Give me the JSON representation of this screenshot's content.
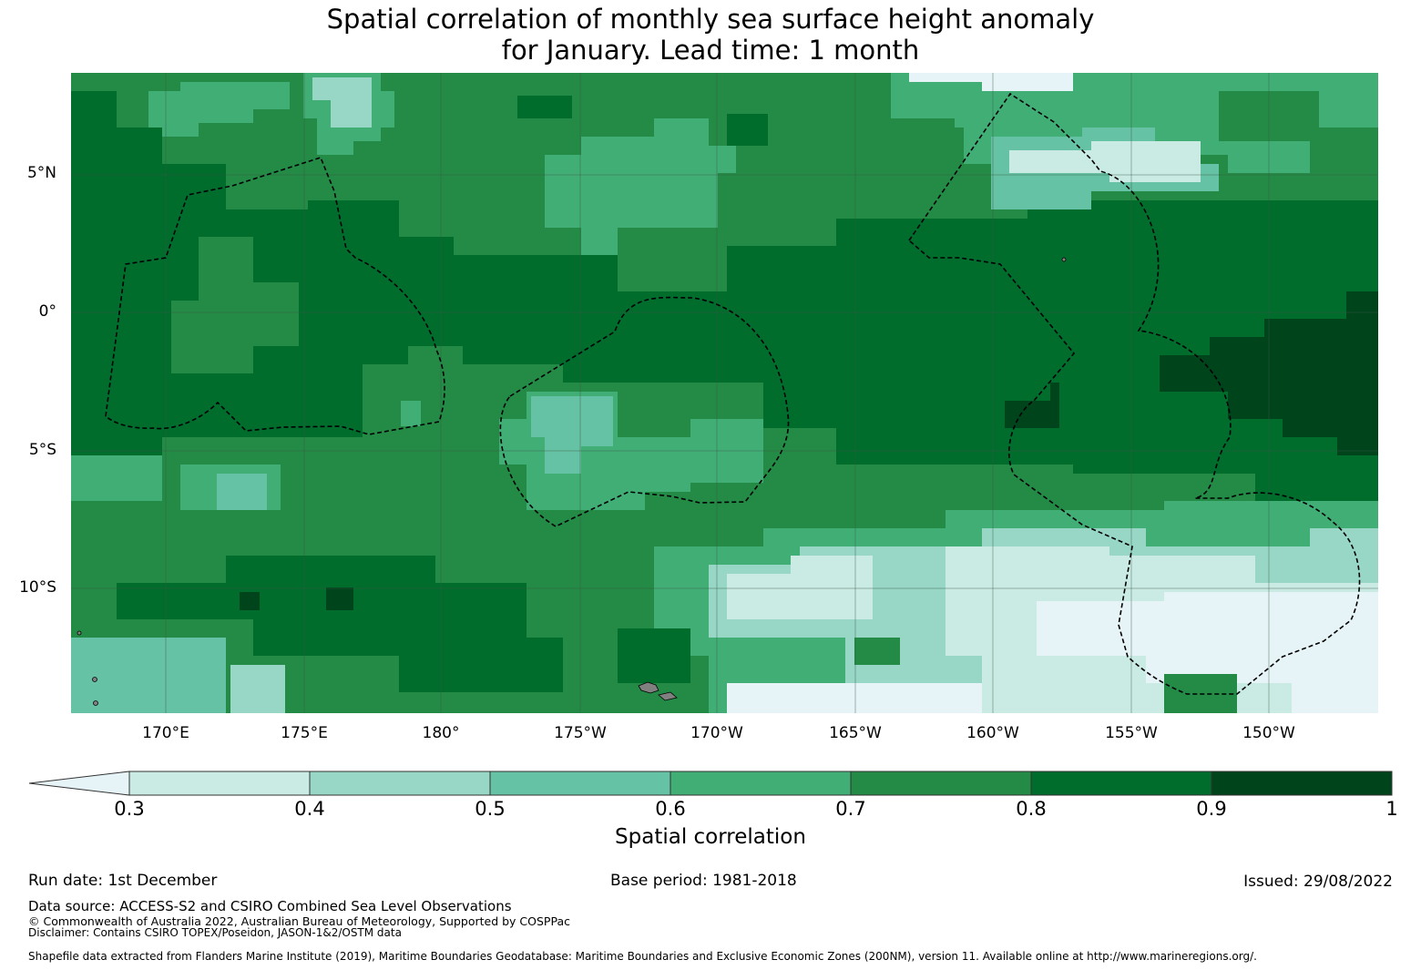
{
  "title_line1": "Spatial correlation of monthly sea surface height anomaly",
  "title_line2": "for January. Lead time: 1 month",
  "lat_labels": [
    "5°N",
    "0°",
    "5°S",
    "10°S"
  ],
  "lon_labels": [
    "170°E",
    "175°E",
    "180°",
    "175°W",
    "170°W",
    "165°W",
    "160°W",
    "155°W",
    "150°W"
  ],
  "colorbar": {
    "label": "Spatial correlation",
    "ticks": [
      "0.3",
      "0.4",
      "0.5",
      "0.6",
      "0.7",
      "0.8",
      "0.9",
      "1"
    ],
    "colors": [
      "#e6f4f8",
      "#c9ebe4",
      "#98d7c6",
      "#66c2a4",
      "#41ae76",
      "#238b45",
      "#006d2c",
      "#00441b"
    ]
  },
  "footer": {
    "run_date": "Run date: 1st December",
    "base_period": "Base period: 1981-2018",
    "issued": "Issued: 29/08/2022",
    "data_source": "Data source: ACCESS-S2 and CSIRO Combined Sea Level Observations",
    "copyright": "© Commonwealth of Australia 2022, Australian Bureau of Meteorology, Supported by COSPPac",
    "disclaimer": "Disclaimer: Contains CSIRO TOPEX/Poseidon, JASON-1&2/OSTM data",
    "shapefile": "Shapefile data extracted from Flanders Marine Institute (2019), Maritime Boundaries Geodatabase: Maritime Boundaries and Exclusive Economic Zones (200NM), version 11. Available online at http://www.marineregions.org/."
  }
}
